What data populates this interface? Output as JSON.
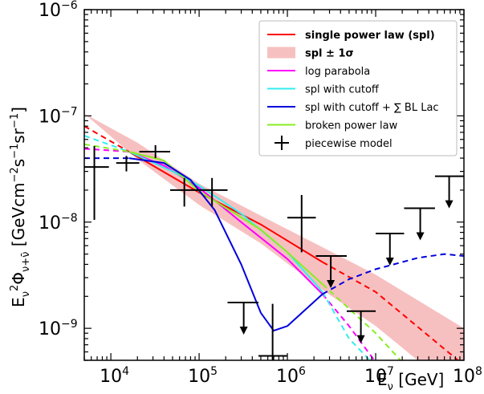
{
  "chart_data": {
    "type": "line",
    "x_scale": "log",
    "y_scale": "log",
    "xlim": [
      5000,
      100000000
    ],
    "ylim": [
      5e-10,
      1e-06
    ],
    "x_ticks": [
      {
        "v": 10000,
        "base": "10",
        "exp": "4"
      },
      {
        "v": 100000,
        "base": "10",
        "exp": "5"
      },
      {
        "v": 1000000,
        "base": "10",
        "exp": "6"
      },
      {
        "v": 10000000,
        "base": "10",
        "exp": "7"
      },
      {
        "v": 100000000,
        "base": "10",
        "exp": "8"
      }
    ],
    "y_ticks": [
      {
        "v": 1e-09,
        "base": "10",
        "exp": "−9"
      },
      {
        "v": 1e-08,
        "base": "10",
        "exp": "−8"
      },
      {
        "v": 1e-07,
        "base": "10",
        "exp": "−7"
      },
      {
        "v": 1e-06,
        "base": "10",
        "exp": "−6"
      }
    ],
    "xlabel": "Eν [GeV]",
    "ylabel": "Eν² Φν+ν̄ [GeV cm⁻² s⁻¹ sr⁻¹]",
    "legend_position": "top-right",
    "legend": [
      {
        "label": "single power law (spl)",
        "color": "#ff0000",
        "kind": "line",
        "bold": true
      },
      {
        "label": "spl  ± 1σ",
        "color": "#f7c0c0",
        "kind": "band",
        "bold": true
      },
      {
        "label": "log parabola",
        "color": "#ff00ff",
        "kind": "line"
      },
      {
        "label": "spl with cutoff",
        "color": "#33eeee",
        "kind": "line"
      },
      {
        "label": "spl with cutoff + ∑ BL Lac",
        "color": "#0000dd",
        "kind": "line"
      },
      {
        "label": "broken power law",
        "color": "#88ee22",
        "kind": "line"
      },
      {
        "label": "piecewise model",
        "color": "#000000",
        "kind": "cross"
      }
    ],
    "band": {
      "color": "#f7c0c0",
      "upper": [
        [
          5000,
          1.05e-07
        ],
        [
          20000,
          5.6e-08
        ],
        [
          100000,
          2.3e-08
        ],
        [
          500000,
          1.15e-08
        ],
        [
          2500000,
          5.8e-09
        ],
        [
          10000000,
          3.2e-09
        ],
        [
          100000000,
          1e-09
        ]
      ],
      "lower": [
        [
          20000,
          3.9e-08
        ],
        [
          100000,
          1.45e-08
        ],
        [
          500000,
          6.3e-09
        ],
        [
          2500000,
          2.3e-09
        ],
        [
          10000000,
          1.05e-09
        ],
        [
          100000000,
          2.2e-10
        ]
      ]
    },
    "series": [
      {
        "label": "single power law (spl)",
        "color": "#ff0000",
        "width": 2,
        "dashed_before": 16000,
        "dashed_after": 2500000,
        "points": [
          [
            5000,
            8e-08
          ],
          [
            16000,
            4.6e-08
          ],
          [
            100000,
            1.9e-08
          ],
          [
            500000,
            9.5e-09
          ],
          [
            2500000,
            4.2e-09
          ],
          [
            10000000,
            2.2e-09
          ],
          [
            100000000,
            4.5e-10
          ]
        ]
      },
      {
        "label": "log parabola",
        "color": "#ff00ff",
        "width": 2,
        "dashed_before": 16000,
        "dashed_after": 2500000,
        "points": [
          [
            5000,
            4.9e-08
          ],
          [
            16000,
            4.6e-08
          ],
          [
            40000,
            3.4e-08
          ],
          [
            100000,
            2.1e-08
          ],
          [
            300000,
            1e-08
          ],
          [
            1000000,
            4.5e-09
          ],
          [
            2500000,
            2.1e-09
          ],
          [
            5000000,
            1.05e-09
          ],
          [
            10000000,
            4.8e-10
          ]
        ]
      },
      {
        "label": "spl with cutoff",
        "color": "#33eeee",
        "width": 2,
        "dashed_before": 16000,
        "dashed_after": 2500000,
        "points": [
          [
            5000,
            6.5e-08
          ],
          [
            16000,
            4.6e-08
          ],
          [
            50000,
            3e-08
          ],
          [
            100000,
            2.2e-08
          ],
          [
            300000,
            1.2e-08
          ],
          [
            1000000,
            5.2e-09
          ],
          [
            2500000,
            2.2e-09
          ],
          [
            5000000,
            8e-10
          ],
          [
            9000000,
            4.8e-10
          ]
        ]
      },
      {
        "label": "broken power law",
        "color": "#88ee22",
        "width": 2,
        "dashed_before": 16000,
        "dashed_after": 2500000,
        "points": [
          [
            5000,
            5.4e-08
          ],
          [
            16000,
            4.6e-08
          ],
          [
            40000,
            3.8e-08
          ],
          [
            100000,
            1.95e-08
          ],
          [
            500000,
            8.5e-09
          ],
          [
            1000000,
            5.2e-09
          ],
          [
            2500000,
            2.6e-09
          ],
          [
            10000000,
            9e-10
          ],
          [
            20000000,
            4.8e-10
          ]
        ]
      },
      {
        "label": "spl with cutoff + ∑ BL Lac",
        "color": "#0000dd",
        "width": 2,
        "dashed_before": 16000,
        "dashed_after": 2500000,
        "points": [
          [
            5000,
            4e-08
          ],
          [
            16000,
            4e-08
          ],
          [
            40000,
            3.6e-08
          ],
          [
            80000,
            2.5e-08
          ],
          [
            150000,
            1.3e-08
          ],
          [
            300000,
            4e-09
          ],
          [
            500000,
            1.4e-09
          ],
          [
            700000,
            9.5e-10
          ],
          [
            1000000,
            1.05e-09
          ],
          [
            2500000,
            2.1e-09
          ],
          [
            5000000,
            2.9e-09
          ],
          [
            10000000,
            3.6e-09
          ],
          [
            30000000,
            4.6e-09
          ],
          [
            60000000,
            5e-09
          ],
          [
            100000000,
            4.8e-09
          ]
        ]
      }
    ],
    "crosses": [
      {
        "x": 6500,
        "xlo": 5000,
        "xhi": 9500,
        "y": 3.3e-08,
        "ylo": 1.05e-08,
        "yhi": 5.2e-08
      },
      {
        "x": 15000,
        "xlo": 11500,
        "xhi": 21000,
        "y": 3.6e-08,
        "ylo": 3e-08,
        "yhi": 4.2e-08
      },
      {
        "x": 32000,
        "xlo": 21000,
        "xhi": 47000,
        "y": 4.6e-08,
        "ylo": 4e-08,
        "yhi": 5.3e-08
      },
      {
        "x": 68000,
        "xlo": 47000,
        "xhi": 100000,
        "y": 2e-08,
        "ylo": 1.4e-08,
        "yhi": 2.6e-08
      },
      {
        "x": 140000,
        "xlo": 100000,
        "xhi": 210000,
        "y": 2e-08,
        "ylo": 1.4e-08,
        "yhi": 2.6e-08
      },
      {
        "x": 680000,
        "xlo": 470000,
        "xhi": 1000000,
        "y": 5.5e-10,
        "ylo": 5e-10,
        "yhi": 1.7e-09
      },
      {
        "x": 1450000,
        "xlo": 1000000,
        "xhi": 2100000,
        "y": 1.1e-08,
        "ylo": 5.2e-09,
        "yhi": 1.8e-08
      }
    ],
    "upper_limits": [
      {
        "x": 320000,
        "xlo": 210000,
        "xhi": 470000,
        "y": 1.75e-09
      },
      {
        "x": 3100000,
        "xlo": 2100000,
        "xhi": 4700000,
        "y": 4.8e-09
      },
      {
        "x": 6800000,
        "xlo": 4700000,
        "xhi": 10000000,
        "y": 1.45e-09
      },
      {
        "x": 14500000,
        "xlo": 10000000,
        "xhi": 21000000,
        "y": 7.8e-09
      },
      {
        "x": 32000000,
        "xlo": 21000000,
        "xhi": 47000000,
        "y": 1.35e-08
      },
      {
        "x": 68000000,
        "xlo": 47000000,
        "xhi": 100000000,
        "y": 2.7e-08
      }
    ]
  }
}
